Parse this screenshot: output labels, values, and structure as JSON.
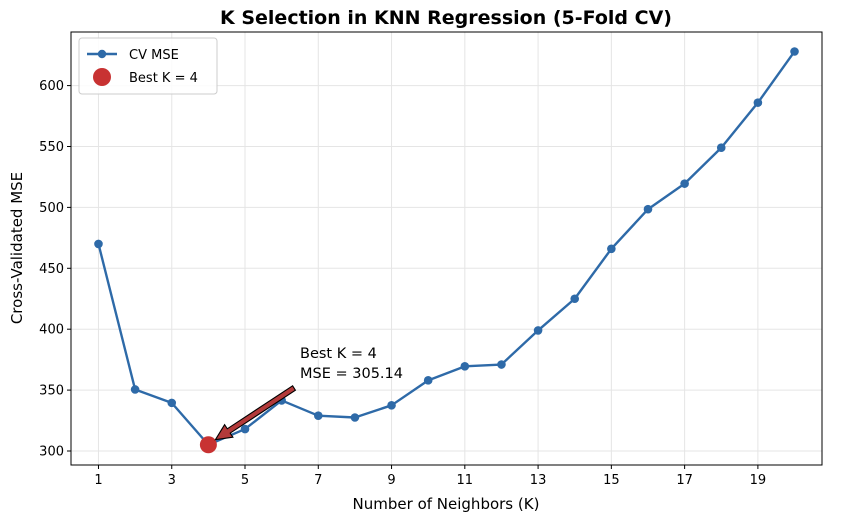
{
  "chart_data": {
    "type": "line",
    "title": "K Selection in KNN Regression (5-Fold CV)",
    "xlabel": "Number of Neighbors (K)",
    "ylabel": "Cross-Validated MSE",
    "x": [
      1,
      2,
      3,
      4,
      5,
      6,
      7,
      8,
      9,
      10,
      11,
      12,
      13,
      14,
      15,
      16,
      17,
      18,
      19,
      20
    ],
    "series": [
      {
        "name": "CV MSE",
        "color": "#2e6aa8",
        "values": [
          470,
          350.5,
          339.5,
          305.14,
          318,
          341.5,
          329,
          327.5,
          337.5,
          358,
          369.5,
          371,
          399,
          425,
          466,
          498.5,
          519.5,
          549,
          586,
          628
        ]
      }
    ],
    "best": {
      "label": "Best K = 4",
      "k": 4,
      "mse": 305.14,
      "color": "#c83232"
    },
    "annotation": {
      "line1": "Best K = 4",
      "line2": "MSE = 305.14"
    },
    "xticks": [
      1,
      3,
      5,
      7,
      9,
      11,
      13,
      15,
      17,
      19
    ],
    "yticks": [
      300,
      350,
      400,
      450,
      500,
      550,
      600
    ],
    "xlim": [
      0.25,
      20.75
    ],
    "ylim": [
      288.5,
      644
    ],
    "grid": true,
    "legend_position": "top-left"
  }
}
